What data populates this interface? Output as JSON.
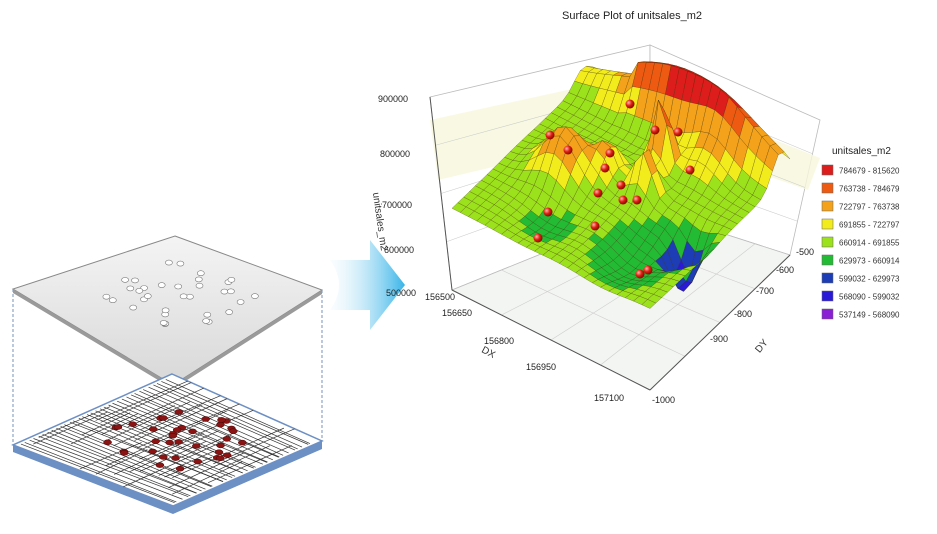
{
  "chart_data": {
    "type": "surface",
    "title": "Surface Plot of unitsales_m2",
    "xlabel": "DX",
    "ylabel": "DY",
    "zlabel": "unitsales_m2",
    "x_ticks": [
      "156500",
      "156650",
      "156800",
      "156950",
      "157100"
    ],
    "y_ticks": [
      "-500",
      "-600",
      "-700",
      "-800",
      "-900",
      "-1000"
    ],
    "z_ticks": [
      "900000",
      "800000",
      "700000",
      "600000",
      "500000"
    ],
    "xlim": [
      156500,
      157100
    ],
    "ylim": [
      -1000,
      -500
    ],
    "zlim": [
      500000,
      900000
    ],
    "legend": {
      "title": "unitsales_m2",
      "position": "right",
      "entries": [
        {
          "label": "784679 - 815620",
          "color": "#dd1c1c"
        },
        {
          "label": "763738 - 784679",
          "color": "#ee5a12"
        },
        {
          "label": "722797 - 763738",
          "color": "#f4a21b"
        },
        {
          "label": "691855 - 722797",
          "color": "#f2ec1c"
        },
        {
          "label": "660914 - 691855",
          "color": "#9be21c"
        },
        {
          "label": "629973 - 660914",
          "color": "#22bb33"
        },
        {
          "label": "599032 - 629973",
          "color": "#1c3db5"
        },
        {
          "label": "568090 - 599032",
          "color": "#2a1ad8"
        },
        {
          "label": "537149 - 568090",
          "color": "#8a1fd6"
        }
      ]
    }
  }
}
